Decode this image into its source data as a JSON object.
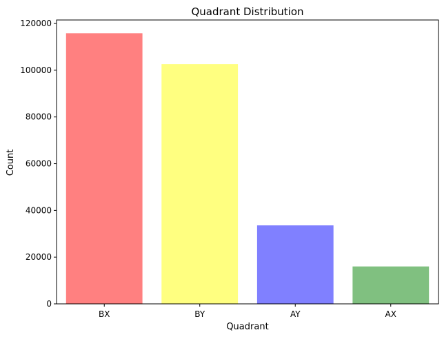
{
  "chart_data": {
    "type": "bar",
    "title": "Quadrant Distribution",
    "xlabel": "Quadrant",
    "ylabel": "Count",
    "categories": [
      "BX",
      "BY",
      "AY",
      "AX"
    ],
    "values": [
      115800,
      102600,
      33600,
      16000
    ],
    "colors": [
      "#ff8080",
      "#ffff80",
      "#8080ff",
      "#80c080"
    ],
    "ylim": [
      0,
      121500
    ],
    "yticks": [
      0,
      20000,
      40000,
      60000,
      80000,
      100000,
      120000
    ],
    "grid": false,
    "legend": "none"
  }
}
